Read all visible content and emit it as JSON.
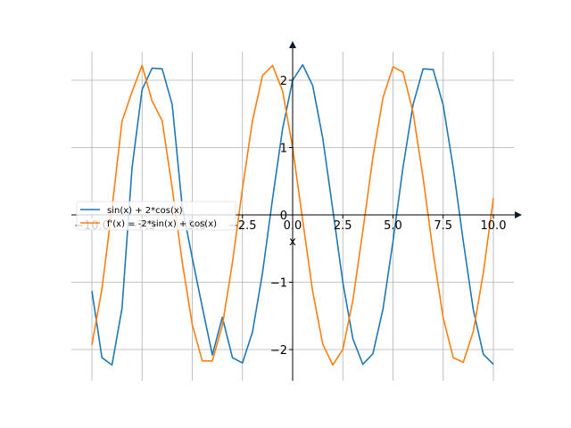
{
  "chart_data": {
    "type": "line",
    "title": "",
    "xlabel": "x",
    "ylabel": "",
    "xlim": [
      -10,
      10
    ],
    "ylim": [
      -2.4,
      2.4
    ],
    "grid": true,
    "legend_placement": "center-left",
    "x_ticks": [
      {
        "value": -10,
        "label": "−10.0"
      },
      {
        "value": -7.5,
        "label": "−7.5"
      },
      {
        "value": -5,
        "label": "−5.0"
      },
      {
        "value": -2.5,
        "label": "−2.5"
      },
      {
        "value": 0,
        "label": "0.0"
      },
      {
        "value": 2.5,
        "label": "2.5"
      },
      {
        "value": 5,
        "label": "5.0"
      },
      {
        "value": 7.5,
        "label": "7.5"
      },
      {
        "value": 10,
        "label": "10.0"
      }
    ],
    "y_ticks": [
      {
        "value": -2,
        "label": "−2"
      },
      {
        "value": -1,
        "label": "−1"
      },
      {
        "value": 0,
        "label": "0"
      },
      {
        "value": 1,
        "label": "1"
      },
      {
        "value": 2,
        "label": "2"
      }
    ],
    "series": [
      {
        "name": "sin(x) + 2*cos(x)",
        "color": "#1f77b4",
        "points": [
          [
            -10,
            -1.13
          ],
          [
            -9.5,
            -2.12
          ],
          [
            -9,
            -2.23
          ],
          [
            -8.5,
            -1.39
          ],
          [
            -8,
            0.7
          ],
          [
            -7.5,
            1.86
          ],
          [
            -7,
            2.18
          ],
          [
            -6.5,
            2.17
          ],
          [
            -6,
            1.64
          ],
          [
            -5.5,
            0.12
          ],
          [
            -5,
            -0.64
          ],
          [
            -4.5,
            -1.37
          ],
          [
            -4,
            -2.08
          ],
          [
            -3.5,
            -1.52
          ],
          [
            -3,
            -2.12
          ],
          [
            -2.5,
            -2.2
          ],
          [
            -2,
            -1.74
          ],
          [
            -1.5,
            -0.86
          ],
          [
            -1,
            0.24
          ],
          [
            -0.5,
            1.28
          ],
          [
            0,
            2.0
          ],
          [
            0.5,
            2.23
          ],
          [
            1,
            1.92
          ],
          [
            1.5,
            1.14
          ],
          [
            2,
            0.08
          ],
          [
            2.5,
            -1.0
          ],
          [
            3,
            -1.84
          ],
          [
            3.5,
            -2.22
          ],
          [
            4,
            -2.06
          ],
          [
            4.5,
            -1.4
          ],
          [
            5,
            -0.39
          ],
          [
            5.5,
            0.71
          ],
          [
            6,
            1.64
          ],
          [
            6.5,
            2.17
          ],
          [
            7,
            2.16
          ],
          [
            7.5,
            1.63
          ],
          [
            8,
            0.7
          ],
          [
            8.5,
            -0.39
          ],
          [
            9,
            -1.41
          ],
          [
            9.5,
            -2.07
          ],
          [
            10,
            -2.22
          ]
        ]
      },
      {
        "name": "f'(x) = -2*sin(x) + cos(x)",
        "color": "#ff7f0e",
        "points": [
          [
            -10,
            -1.93
          ],
          [
            -9.5,
            -1.1
          ],
          [
            -9,
            0.09
          ],
          [
            -8.5,
            1.39
          ],
          [
            -8,
            1.83
          ],
          [
            -7.5,
            2.22
          ],
          [
            -7,
            1.69
          ],
          [
            -6.5,
            1.4
          ],
          [
            -6,
            0.4
          ],
          [
            -5.5,
            -0.7
          ],
          [
            -5,
            -1.63
          ],
          [
            -4.5,
            -2.17
          ],
          [
            -4,
            -2.17
          ],
          [
            -3.5,
            -1.64
          ],
          [
            -3,
            -0.71
          ],
          [
            -2.5,
            0.39
          ],
          [
            -2,
            1.4
          ],
          [
            -1.5,
            2.07
          ],
          [
            -1,
            2.22
          ],
          [
            -0.5,
            1.84
          ],
          [
            0,
            1.0
          ],
          [
            0.5,
            -0.08
          ],
          [
            1,
            -1.14
          ],
          [
            1.5,
            -1.92
          ],
          [
            2,
            -2.23
          ],
          [
            2.5,
            -2.0
          ],
          [
            3,
            -1.27
          ],
          [
            3.5,
            -0.23
          ],
          [
            4,
            0.86
          ],
          [
            4.5,
            1.74
          ],
          [
            5,
            2.2
          ],
          [
            5.5,
            2.12
          ],
          [
            6,
            1.52
          ],
          [
            6.5,
            0.55
          ],
          [
            7,
            -0.56
          ],
          [
            7.5,
            -1.53
          ],
          [
            8,
            -2.12
          ],
          [
            8.5,
            -2.19
          ],
          [
            9,
            -1.73
          ],
          [
            9.5,
            -0.86
          ],
          [
            10,
            0.25
          ]
        ]
      }
    ]
  }
}
